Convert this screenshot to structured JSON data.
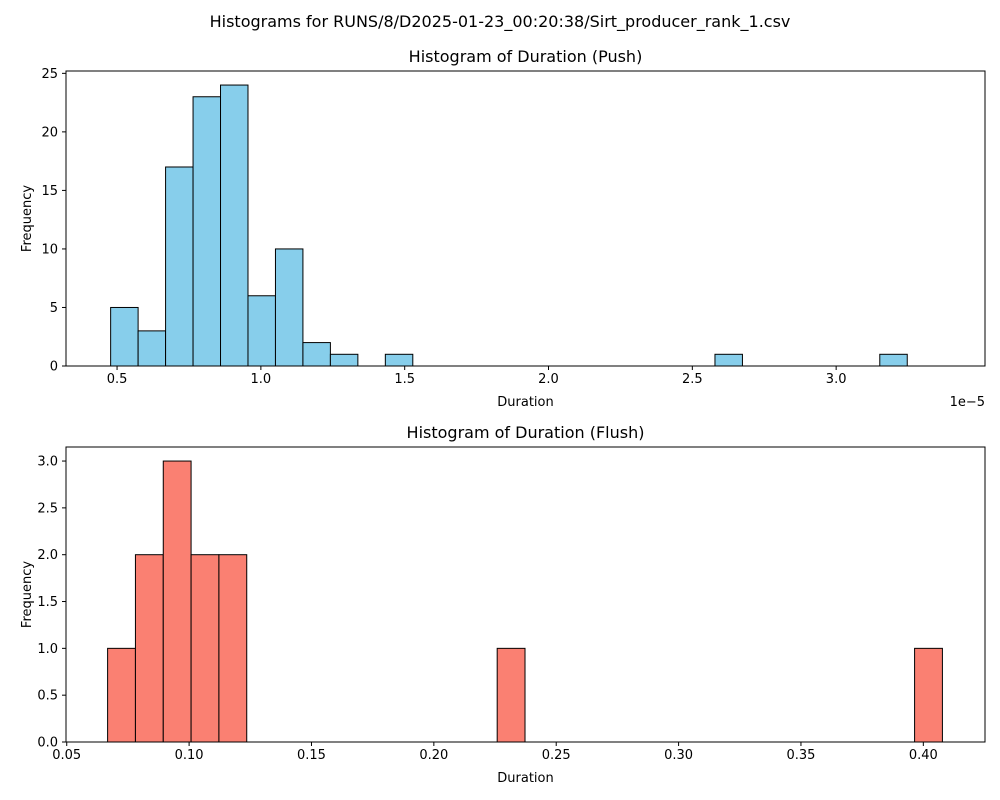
{
  "suptitle": "Histograms for RUNS/8/D2025-01-23_00:20:38/Sirt_producer_rank_1.csv",
  "chart_data": [
    {
      "type": "bar",
      "title": "Histogram of Duration (Push)",
      "xlabel": "Duration",
      "ylabel": "Frequency",
      "x_offset_text": "1e−5",
      "xlim": [
        0.3225,
        3.5175
      ],
      "ylim": [
        0,
        25.2
      ],
      "xticks": [
        0.5,
        1.0,
        1.5,
        2.0,
        2.5,
        3.0
      ],
      "xtick_labels": [
        "0.5",
        "1.0",
        "1.5",
        "2.0",
        "2.5",
        "3.0"
      ],
      "yticks": [
        0,
        5,
        10,
        15,
        20,
        25
      ],
      "ytick_labels": [
        "0",
        "5",
        "10",
        "15",
        "20",
        "25"
      ],
      "bin_start": 0.4777,
      "bin_width": 0.0955,
      "counts": [
        5,
        3,
        17,
        23,
        24,
        6,
        10,
        2,
        1,
        0,
        1,
        0,
        0,
        0,
        0,
        0,
        0,
        0,
        0,
        0,
        0,
        0,
        1,
        0,
        0,
        0,
        0,
        0,
        1
      ],
      "fill_color": "#87ceeb",
      "edge_color": "#000000"
    },
    {
      "type": "bar",
      "title": "Histogram of Duration (Flush)",
      "xlabel": "Duration",
      "ylabel": "Frequency",
      "xlim": [
        0.0497,
        0.4252
      ],
      "ylim": [
        0,
        3.15
      ],
      "xticks": [
        0.05,
        0.1,
        0.15,
        0.2,
        0.25,
        0.3,
        0.35,
        0.4
      ],
      "xtick_labels": [
        "0.05",
        "0.10",
        "0.15",
        "0.20",
        "0.25",
        "0.30",
        "0.35",
        "0.40"
      ],
      "yticks": [
        0,
        0.5,
        1.0,
        1.5,
        2.0,
        2.5,
        3.0
      ],
      "ytick_labels": [
        "0.0",
        "0.5",
        "1.0",
        "1.5",
        "2.0",
        "2.5",
        "3.0"
      ],
      "bin_start": 0.0667,
      "bin_width": 0.01137,
      "counts": [
        1,
        2,
        3,
        2,
        2,
        0,
        0,
        0,
        0,
        0,
        0,
        0,
        0,
        0,
        1,
        0,
        0,
        0,
        0,
        0,
        0,
        0,
        0,
        0,
        0,
        0,
        0,
        0,
        0,
        1
      ],
      "fill_color": "#fa8072",
      "edge_color": "#000000"
    }
  ]
}
